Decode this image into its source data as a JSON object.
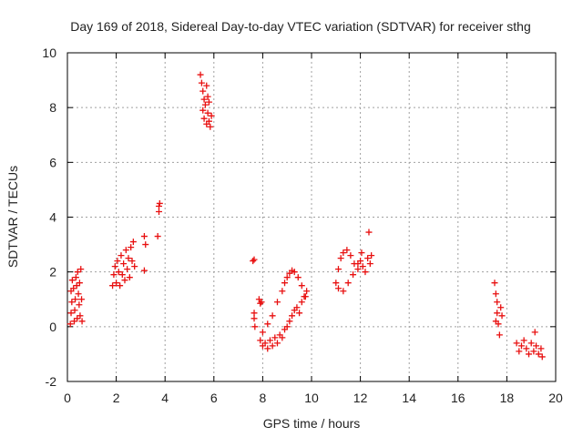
{
  "chart_data": {
    "type": "scatter",
    "title": "Day 169 of 2018, Sidereal Day-to-day VTEC variation (SDTVAR) for receiver sthg",
    "xlabel": "GPS time / hours",
    "ylabel": "SDTVAR / TECUs",
    "xlim": [
      0,
      20
    ],
    "ylim": [
      -2,
      10
    ],
    "xticks": [
      "0",
      "2",
      "4",
      "6",
      "8",
      "10",
      "12",
      "14",
      "16",
      "18",
      "20"
    ],
    "yticks": [
      "-2",
      "0",
      "2",
      "4",
      "6",
      "8",
      "10"
    ],
    "grid": true,
    "marker": "plus",
    "color": "#e81010",
    "series": [
      {
        "name": "SDTVAR",
        "points": [
          [
            0.12,
            0.1
          ],
          [
            0.15,
            0.5
          ],
          [
            0.18,
            0.9
          ],
          [
            0.15,
            1.3
          ],
          [
            0.2,
            1.7
          ],
          [
            0.25,
            1.4
          ],
          [
            0.28,
            0.2
          ],
          [
            0.3,
            0.6
          ],
          [
            0.32,
            1.0
          ],
          [
            0.35,
            1.8
          ],
          [
            0.38,
            1.5
          ],
          [
            0.4,
            0.3
          ],
          [
            0.42,
            2.0
          ],
          [
            0.45,
            1.2
          ],
          [
            0.48,
            0.8
          ],
          [
            0.5,
            1.6
          ],
          [
            0.52,
            0.4
          ],
          [
            0.55,
            2.1
          ],
          [
            0.58,
            1.0
          ],
          [
            0.6,
            0.2
          ],
          [
            1.85,
            1.5
          ],
          [
            1.9,
            1.9
          ],
          [
            1.95,
            2.2
          ],
          [
            2.0,
            1.6
          ],
          [
            2.05,
            2.4
          ],
          [
            2.1,
            2.0
          ],
          [
            2.15,
            1.5
          ],
          [
            2.2,
            2.6
          ],
          [
            2.25,
            1.9
          ],
          [
            2.3,
            2.3
          ],
          [
            2.35,
            1.7
          ],
          [
            2.4,
            2.8
          ],
          [
            2.45,
            2.1
          ],
          [
            2.5,
            2.5
          ],
          [
            2.55,
            1.8
          ],
          [
            2.6,
            2.9
          ],
          [
            2.65,
            2.4
          ],
          [
            2.7,
            3.1
          ],
          [
            2.75,
            2.2
          ],
          [
            3.15,
            2.05
          ],
          [
            3.15,
            3.3
          ],
          [
            3.2,
            3.0
          ],
          [
            3.7,
            3.3
          ],
          [
            3.75,
            4.2
          ],
          [
            3.75,
            4.4
          ],
          [
            3.78,
            4.5
          ],
          [
            5.45,
            9.2
          ],
          [
            5.5,
            8.9
          ],
          [
            5.55,
            8.6
          ],
          [
            5.6,
            8.3
          ],
          [
            5.55,
            7.9
          ],
          [
            5.6,
            7.6
          ],
          [
            5.65,
            8.1
          ],
          [
            5.7,
            7.4
          ],
          [
            5.75,
            7.8
          ],
          [
            5.8,
            7.5
          ],
          [
            5.85,
            7.3
          ],
          [
            5.9,
            7.7
          ],
          [
            5.75,
            8.4
          ],
          [
            5.8,
            8.2
          ],
          [
            5.7,
            8.8
          ],
          [
            7.6,
            2.4
          ],
          [
            7.65,
            2.45
          ],
          [
            7.65,
            0.5
          ],
          [
            7.65,
            0.3
          ],
          [
            7.68,
            0.0
          ],
          [
            7.85,
            1.0
          ],
          [
            7.9,
            0.85
          ],
          [
            7.95,
            0.9
          ],
          [
            7.9,
            -0.5
          ],
          [
            8.0,
            -0.7
          ],
          [
            8.1,
            -0.6
          ],
          [
            8.2,
            -0.8
          ],
          [
            8.3,
            -0.5
          ],
          [
            8.4,
            -0.7
          ],
          [
            8.5,
            -0.4
          ],
          [
            8.6,
            -0.6
          ],
          [
            8.7,
            -0.3
          ],
          [
            8.8,
            -0.4
          ],
          [
            8.9,
            -0.1
          ],
          [
            9.0,
            0.0
          ],
          [
            9.1,
            0.2
          ],
          [
            9.2,
            0.4
          ],
          [
            9.3,
            0.6
          ],
          [
            9.4,
            0.7
          ],
          [
            9.5,
            0.5
          ],
          [
            9.6,
            0.9
          ],
          [
            9.7,
            1.1
          ],
          [
            9.8,
            1.3
          ],
          [
            8.0,
            -0.2
          ],
          [
            8.2,
            0.1
          ],
          [
            8.4,
            0.4
          ],
          [
            8.6,
            0.9
          ],
          [
            8.8,
            1.3
          ],
          [
            8.9,
            1.6
          ],
          [
            9.0,
            1.8
          ],
          [
            9.1,
            1.95
          ],
          [
            9.2,
            2.05
          ],
          [
            9.3,
            2.0
          ],
          [
            9.45,
            1.8
          ],
          [
            9.6,
            1.5
          ],
          [
            9.75,
            1.1
          ],
          [
            11.0,
            1.6
          ],
          [
            11.1,
            2.1
          ],
          [
            11.2,
            2.5
          ],
          [
            11.3,
            2.7
          ],
          [
            11.45,
            2.8
          ],
          [
            11.6,
            2.6
          ],
          [
            11.75,
            2.3
          ],
          [
            11.9,
            2.1
          ],
          [
            12.0,
            2.4
          ],
          [
            12.1,
            2.2
          ],
          [
            12.2,
            2.0
          ],
          [
            12.3,
            2.5
          ],
          [
            12.4,
            2.3
          ],
          [
            12.45,
            2.6
          ],
          [
            11.1,
            1.4
          ],
          [
            11.3,
            1.3
          ],
          [
            11.5,
            1.6
          ],
          [
            11.7,
            1.9
          ],
          [
            11.9,
            2.3
          ],
          [
            12.05,
            2.7
          ],
          [
            12.35,
            3.45
          ],
          [
            17.5,
            1.6
          ],
          [
            17.55,
            1.2
          ],
          [
            17.6,
            0.9
          ],
          [
            17.6,
            0.5
          ],
          [
            17.65,
            0.1
          ],
          [
            17.7,
            -0.3
          ],
          [
            17.75,
            0.7
          ],
          [
            17.8,
            0.4
          ],
          [
            17.55,
            0.2
          ],
          [
            18.4,
            -0.6
          ],
          [
            18.5,
            -0.9
          ],
          [
            18.6,
            -0.7
          ],
          [
            18.7,
            -0.5
          ],
          [
            18.8,
            -0.8
          ],
          [
            18.9,
            -1.0
          ],
          [
            19.0,
            -0.6
          ],
          [
            19.1,
            -0.9
          ],
          [
            19.15,
            -0.2
          ],
          [
            19.2,
            -0.7
          ],
          [
            19.3,
            -1.0
          ],
          [
            19.4,
            -0.8
          ],
          [
            19.45,
            -1.1
          ]
        ]
      }
    ]
  }
}
